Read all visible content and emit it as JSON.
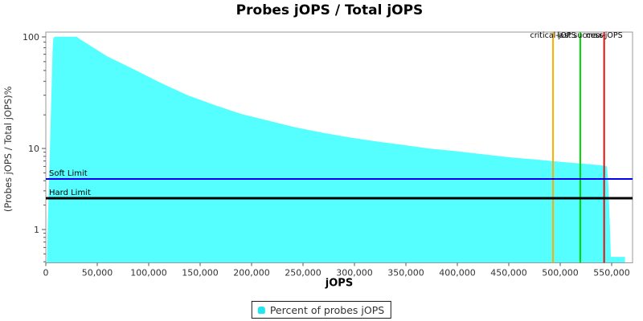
{
  "chart_data": {
    "type": "area",
    "title": "Probes jOPS / Total jOPS",
    "xlabel": "jOPS",
    "ylabel": "(Probes jOPS / Total jOPS)%",
    "y_scale": "log",
    "xlim": [
      0,
      570000
    ],
    "ylim": [
      0.39,
      110
    ],
    "grid": "off",
    "legend_position": "bottom",
    "x_ticks": [
      {
        "v": 0,
        "label": "0"
      },
      {
        "v": 50000,
        "label": "50,000"
      },
      {
        "v": 100000,
        "label": "100,000"
      },
      {
        "v": 150000,
        "label": "150,000"
      },
      {
        "v": 200000,
        "label": "200,000"
      },
      {
        "v": 250000,
        "label": "250,000"
      },
      {
        "v": 300000,
        "label": "300,000"
      },
      {
        "v": 350000,
        "label": "350,000"
      },
      {
        "v": 400000,
        "label": "400,000"
      },
      {
        "v": 450000,
        "label": "450,000"
      },
      {
        "v": 500000,
        "label": "500,000"
      },
      {
        "v": 550000,
        "label": "550,000"
      }
    ],
    "y_major_ticks": [
      {
        "v": 1,
        "label": "1"
      },
      {
        "v": 10,
        "label": "10"
      },
      {
        "v": 100,
        "label": "100"
      }
    ],
    "y_minor_ticks": [
      0.4,
      0.5,
      0.6,
      0.7,
      0.8,
      0.9,
      2,
      3,
      4,
      5,
      6,
      7,
      8,
      9,
      20,
      30,
      40,
      50,
      60,
      70,
      80,
      90
    ],
    "series": [
      {
        "name": "Percent of probes jOPS",
        "color": "#55FFFF",
        "points": [
          [
            1000,
            0.42
          ],
          [
            3900,
            9
          ],
          [
            5500,
            31
          ],
          [
            6600,
            75
          ],
          [
            7300,
            97
          ],
          [
            8500,
            100.5
          ],
          [
            30000,
            100.5
          ],
          [
            33600,
            95
          ],
          [
            59800,
            67
          ],
          [
            85900,
            51
          ],
          [
            112000,
            38.6
          ],
          [
            138000,
            30
          ],
          [
            164000,
            24.5
          ],
          [
            190000,
            20.4
          ],
          [
            216000,
            17.8
          ],
          [
            242000,
            15.5
          ],
          [
            268000,
            13.9
          ],
          [
            294000,
            12.6
          ],
          [
            320000,
            11.6
          ],
          [
            346000,
            10.8
          ],
          [
            372000,
            10.0
          ],
          [
            398000,
            9.3
          ],
          [
            424000,
            8.5
          ],
          [
            450000,
            7.8
          ],
          [
            476000,
            7.3
          ],
          [
            502000,
            6.8
          ],
          [
            528000,
            6.4
          ],
          [
            542000,
            6.15
          ],
          [
            545500,
            6.0
          ],
          [
            546800,
            3.5
          ],
          [
            548200,
            1.2
          ],
          [
            549200,
            0.46
          ],
          [
            563000,
            0.46
          ]
        ]
      }
    ],
    "h_markers": [
      {
        "label": "Soft Limit",
        "value": 4.2,
        "color": "#0000ee",
        "width": 2
      },
      {
        "label": "Hard Limit",
        "value": 2.43,
        "color": "#000000",
        "width": 3
      }
    ],
    "v_markers": [
      {
        "label": "critical-jOPS",
        "value": 493000,
        "color": "#ffae00",
        "width": 2
      },
      {
        "label": "last success",
        "value": 519500,
        "color": "#00d900",
        "width": 2
      },
      {
        "label": "max-jOPS",
        "value": 542700,
        "color": "#dd1111",
        "width": 2
      }
    ]
  },
  "legend": {
    "label": "Percent of probes jOPS"
  }
}
